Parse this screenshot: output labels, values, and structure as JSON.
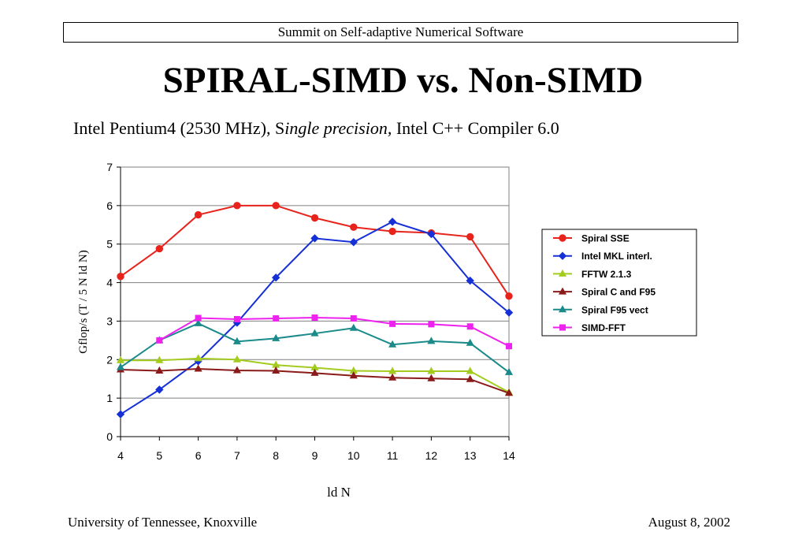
{
  "header": {
    "banner": "Summit on Self-adaptive Numerical Software"
  },
  "title": "SPIRAL-SIMD vs. Non-SIMD",
  "subtitle": {
    "part1": "Intel Pentium4 (2530 MHz), S",
    "italic": "ingle precision,",
    "part2": " Intel C++ Compiler 6.0"
  },
  "footer": {
    "left": "University of Tennessee, Knoxville",
    "right": "August 8, 2002"
  },
  "chart_data": {
    "type": "line",
    "title": "",
    "xlabel": "ld N",
    "ylabel": "Gflop/s (T / 5 N ld N)",
    "x": [
      4,
      5,
      6,
      7,
      8,
      9,
      10,
      11,
      12,
      13,
      14
    ],
    "xlim": [
      4,
      14
    ],
    "ylim": [
      0,
      7
    ],
    "yticks": [
      0,
      1,
      2,
      3,
      4,
      5,
      6,
      7
    ],
    "grid": true,
    "legend": "right",
    "series": [
      {
        "name": "Spiral SSE",
        "color": "#e8231c",
        "marker": "circle",
        "values": [
          4.16,
          4.88,
          5.76,
          6.0,
          6.0,
          5.68,
          5.44,
          5.33,
          5.29,
          5.19,
          3.65
        ]
      },
      {
        "name": "Intel MKL interl.",
        "color": "#1530d6",
        "marker": "diamond",
        "values": [
          0.58,
          1.22,
          1.96,
          2.96,
          4.13,
          5.15,
          5.05,
          5.58,
          5.26,
          4.05,
          3.22
        ]
      },
      {
        "name": "FFTW 2.1.3",
        "color": "#a3cc1e",
        "marker": "triangle",
        "values": [
          1.98,
          1.98,
          2.03,
          2.0,
          1.86,
          1.79,
          1.71,
          1.7,
          1.7,
          1.7,
          1.15
        ]
      },
      {
        "name": "Spiral C and F95",
        "color": "#8b1a1a",
        "marker": "triangle",
        "values": [
          1.74,
          1.71,
          1.76,
          1.72,
          1.71,
          1.65,
          1.58,
          1.53,
          1.51,
          1.49,
          1.13
        ]
      },
      {
        "name": "Spiral F95 vect",
        "color": "#1a8a8a",
        "marker": "triangle",
        "values": [
          1.8,
          2.5,
          2.94,
          2.47,
          2.55,
          2.68,
          2.82,
          2.39,
          2.48,
          2.43,
          1.67
        ]
      },
      {
        "name": "SIMD-FFT",
        "color": "#ee22ee",
        "marker": "square",
        "values": [
          null,
          2.5,
          3.08,
          3.05,
          3.07,
          3.09,
          3.07,
          2.93,
          2.92,
          2.86,
          2.35
        ]
      }
    ]
  }
}
